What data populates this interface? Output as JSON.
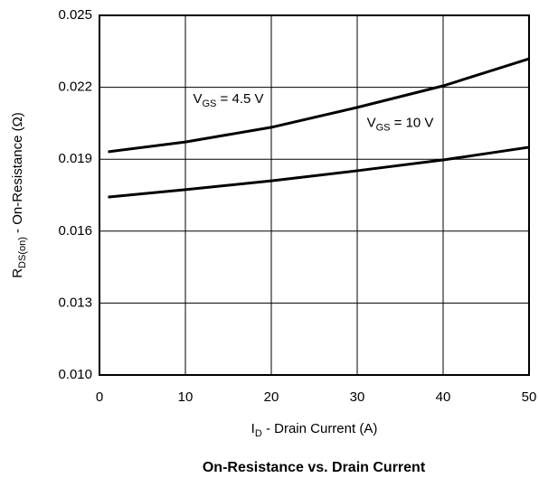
{
  "chart_data": {
    "type": "line",
    "title": "On-Resistance vs. Drain Current",
    "xlabel": [
      "I",
      "D",
      " - Drain Current (A)"
    ],
    "ylabel": [
      "R",
      "DS(on)",
      " - On-Resistance (Ω)"
    ],
    "x": [
      1,
      10,
      20,
      30,
      40,
      50
    ],
    "series": [
      {
        "name": [
          "V",
          "GS",
          " = 4.5 V"
        ],
        "color": "#000000",
        "values": [
          0.01931,
          0.01972,
          0.02033,
          0.02116,
          0.02206,
          0.02319
        ]
      },
      {
        "name": [
          "V",
          "GS",
          " = 10 V"
        ],
        "color": "#000000",
        "values": [
          0.01742,
          0.01773,
          0.0181,
          0.01852,
          0.01897,
          0.0195
        ]
      }
    ],
    "xlim": [
      0,
      50
    ],
    "xticks": [
      0,
      10,
      20,
      30,
      40,
      50
    ],
    "ylim": [
      0.01,
      0.025
    ],
    "yticks": [
      {
        "value": 0.01,
        "label": "0.010"
      },
      0.013,
      0.016,
      0.019,
      0.022,
      0.025
    ],
    "grid": true
  }
}
